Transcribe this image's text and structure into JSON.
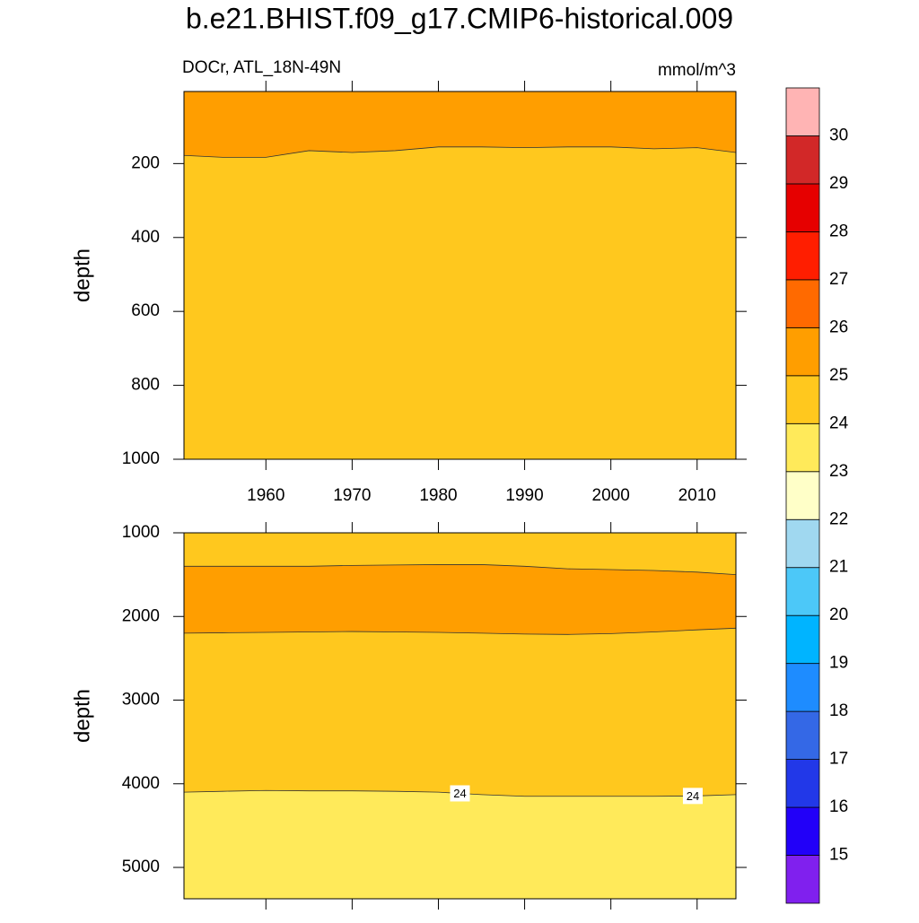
{
  "title": "b.e21.BHIST.f09_g17.CMIP6-historical.009",
  "colorbar": {
    "levels": [
      15,
      16,
      17,
      18,
      19,
      20,
      21,
      22,
      23,
      24,
      25,
      26,
      27,
      28,
      29,
      30
    ],
    "colors": [
      "#8020ee",
      "#2200f8",
      "#2238e8",
      "#3468e6",
      "#1e8cff",
      "#00b4ff",
      "#4cc8f8",
      "#a0d8f0",
      "#ffffc8",
      "#ffea5a",
      "#ffc81e",
      "#ff9e00",
      "#ff6a00",
      "#ff1e00",
      "#e60000",
      "#d22828",
      "#ffb4b4"
    ]
  },
  "chart_data": [
    {
      "type": "contour",
      "subtitle_left": "DOCr, ATL_18N-49N",
      "subtitle_right": "mmol/m^3",
      "ylabel": "depth",
      "x": [
        1950.5,
        1955,
        1960,
        1965,
        1970,
        1975,
        1980,
        1985,
        1990,
        1995,
        2000,
        2005,
        2010,
        2014.5
      ],
      "xlim": [
        1950.5,
        2014.5
      ],
      "xticks": [
        1960,
        1970,
        1980,
        1990,
        2000,
        2010
      ],
      "ylim": [
        5,
        1000
      ],
      "yticks": [
        200,
        400,
        600,
        800,
        1000
      ],
      "y_reversed": true,
      "fill_levels": [
        25,
        24
      ],
      "contours": [
        {
          "level": 25,
          "values": [
            178,
            183,
            183,
            165,
            170,
            165,
            155,
            155,
            157,
            155,
            155,
            160,
            157,
            170
          ]
        }
      ]
    },
    {
      "type": "contour",
      "ylabel": "depth",
      "x": [
        1950.5,
        1955,
        1960,
        1965,
        1970,
        1975,
        1980,
        1985,
        1990,
        1995,
        2000,
        2005,
        2010,
        2014.5
      ],
      "xlim": [
        1950.5,
        2014.5
      ],
      "xticks": [
        1960,
        1970,
        1980,
        1990,
        2000,
        2010
      ],
      "ylim": [
        1000,
        5375
      ],
      "yticks": [
        1000,
        2000,
        3000,
        4000,
        5000
      ],
      "y_reversed": true,
      "fill_levels": [
        24,
        25,
        24,
        23
      ],
      "contours": [
        {
          "level": 25,
          "values": [
            1400,
            1400,
            1400,
            1400,
            1390,
            1385,
            1380,
            1380,
            1400,
            1430,
            1440,
            1450,
            1470,
            1500
          ]
        },
        {
          "level": 25,
          "values": [
            2200,
            2195,
            2190,
            2185,
            2180,
            2185,
            2190,
            2200,
            2210,
            2215,
            2205,
            2185,
            2160,
            2140
          ]
        },
        {
          "level": 24,
          "values": [
            4100,
            4090,
            4080,
            4085,
            4085,
            4090,
            4100,
            4130,
            4150,
            4150,
            4150,
            4150,
            4145,
            4130
          ],
          "labels_at": [
            1982.5,
            2009.5
          ]
        }
      ]
    }
  ]
}
